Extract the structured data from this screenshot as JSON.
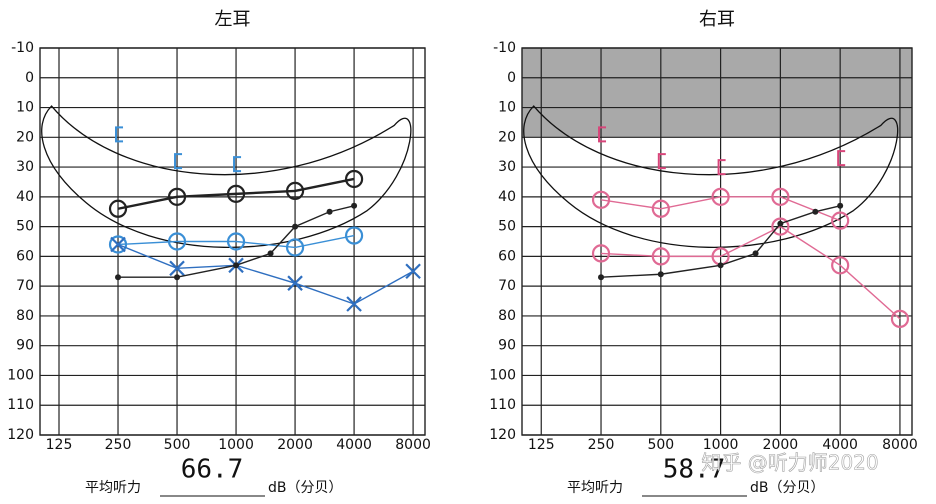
{
  "chart_data": [
    {
      "type": "line",
      "title": "左耳",
      "xscale": "log",
      "xlim": [
        100,
        9200
      ],
      "xticks": [
        125,
        250,
        500,
        1000,
        2000,
        4000,
        8000
      ],
      "ylim": [
        -10,
        120
      ],
      "yinverted": true,
      "yticks": [
        -10,
        0,
        10,
        20,
        30,
        40,
        50,
        60,
        70,
        80,
        90,
        100,
        110,
        120
      ],
      "grid": true,
      "series": [
        {
          "color": "#3a8fd6",
          "marker": "bracket",
          "line": false,
          "x": [
            250,
            500,
            1000
          ],
          "values": [
            19,
            28,
            29
          ]
        },
        {
          "color": "#222222",
          "marker": "circle",
          "line": true,
          "x": [
            250,
            500,
            1000,
            2000,
            4000
          ],
          "values": [
            44,
            40,
            39,
            38,
            34
          ]
        },
        {
          "color": "#3a8fd6",
          "marker": "circle",
          "line": true,
          "x": [
            250,
            500,
            1000,
            2000,
            4000
          ],
          "values": [
            56,
            55,
            55,
            57,
            53
          ]
        },
        {
          "color": "#2f6fc0",
          "marker": "x",
          "line": true,
          "x": [
            250,
            500,
            1000,
            2000,
            4000,
            8000
          ],
          "values": [
            56,
            64,
            63,
            69,
            76,
            65
          ]
        },
        {
          "color": "#222222",
          "marker": "dot",
          "line": true,
          "x": [
            250,
            500,
            1000,
            1500,
            2000,
            3000,
            4000
          ],
          "values": [
            67,
            67,
            63,
            59,
            50,
            45,
            43
          ]
        }
      ],
      "average_label": "平均听力",
      "average": 66.7,
      "unit": "dB（分贝）"
    },
    {
      "type": "line",
      "title": "右耳",
      "xscale": "log",
      "xlim": [
        100,
        9200
      ],
      "xticks": [
        125,
        250,
        500,
        1000,
        2000,
        4000,
        8000
      ],
      "ylim": [
        -10,
        120
      ],
      "yinverted": true,
      "yticks": [
        -10,
        0,
        10,
        20,
        30,
        40,
        50,
        60,
        70,
        80,
        90,
        100,
        110,
        120
      ],
      "grid": true,
      "shaded_ylim": [
        -10,
        20
      ],
      "series": [
        {
          "color": "#d8457a",
          "marker": "bracket",
          "line": false,
          "x": [
            250,
            500,
            1000,
            4000
          ],
          "values": [
            19,
            28,
            30,
            27
          ]
        },
        {
          "color": "#e06a94",
          "marker": "circle",
          "line": true,
          "x": [
            250,
            500,
            1000,
            2000,
            4000
          ],
          "values": [
            41,
            44,
            40,
            40,
            48
          ]
        },
        {
          "color": "#e06a94",
          "marker": "circle",
          "line": true,
          "x": [
            250,
            500,
            1000,
            2000,
            4000,
            8000
          ],
          "values": [
            59,
            60,
            60,
            50,
            63,
            81
          ]
        },
        {
          "color": "#222222",
          "marker": "dot",
          "line": true,
          "x": [
            250,
            500,
            1000,
            1500,
            2000,
            3000,
            4000
          ],
          "values": [
            67,
            66,
            63,
            59,
            49,
            45,
            43
          ]
        }
      ],
      "average_label": "平均听力",
      "average": 58.7,
      "unit": "dB（分贝）"
    }
  ],
  "watermark": "知乎 @听力师2020"
}
